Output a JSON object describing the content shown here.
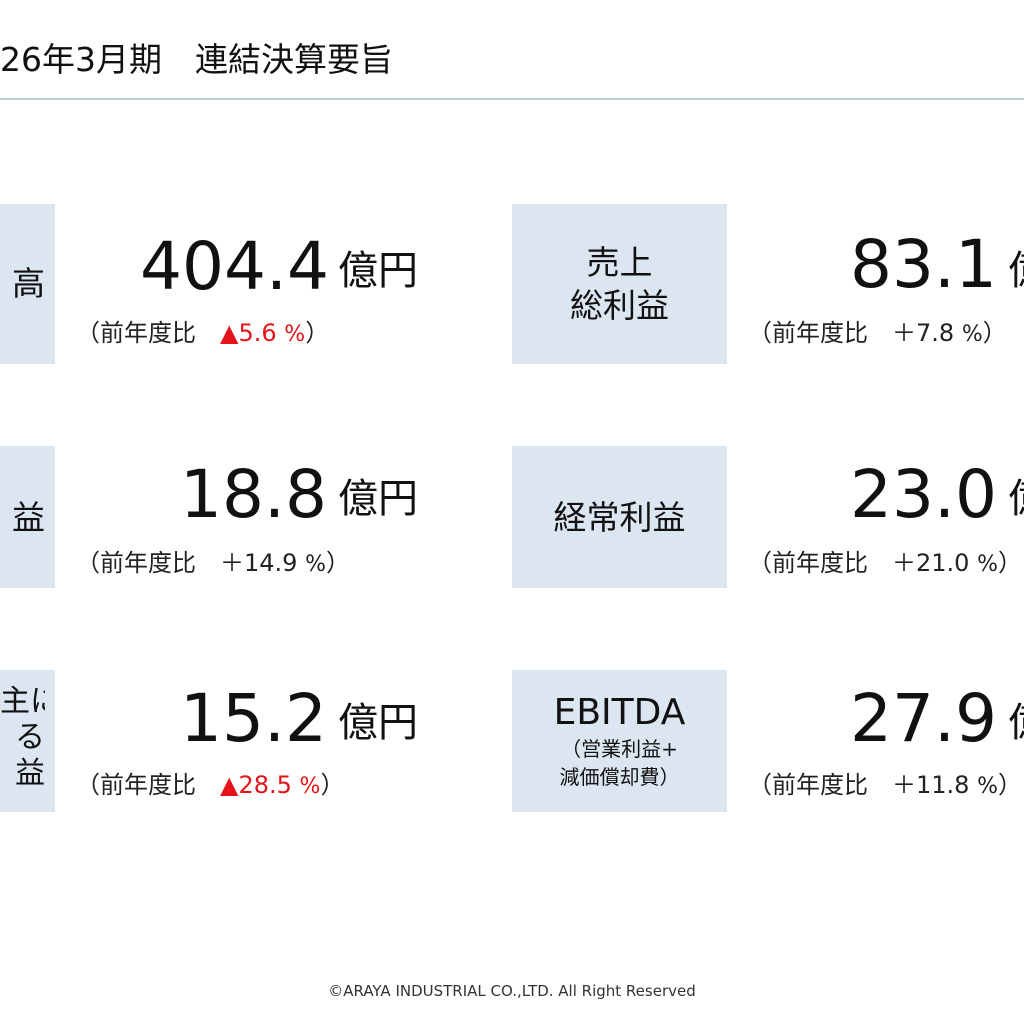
{
  "page": {
    "title": "26年3月期　連結決算要旨",
    "footer": "©ARAYA INDUSTRIAL CO.,LTD. All Right Reserved"
  },
  "colors": {
    "label_bg": "#dce6f1",
    "negative": "#e3141a",
    "rule": "#bcd3df"
  },
  "left": [
    {
      "label_fragments": [
        "高"
      ],
      "value": "404.4",
      "unit": "億円",
      "cmp_prefix": "（前年度比　",
      "cmp_sign": "▲",
      "cmp_value": "5.6",
      "cmp_pct": "%",
      "cmp_suffix": "）",
      "negative": true
    },
    {
      "label_fragments": [
        "益"
      ],
      "value": "18.8",
      "unit": "億円",
      "cmp_prefix": "（前年度比　",
      "cmp_sign": "＋",
      "cmp_value": "14.9",
      "cmp_pct": "%",
      "cmp_suffix": "）",
      "negative": false
    },
    {
      "label_fragments": [
        "主に",
        "る",
        "益"
      ],
      "value": "15.2",
      "unit": "億円",
      "cmp_prefix": "（前年度比　",
      "cmp_sign": "▲",
      "cmp_value": "28.5",
      "cmp_pct": "%",
      "cmp_suffix": "）",
      "negative": true
    }
  ],
  "right": [
    {
      "label_lines": [
        "売上",
        "総利益"
      ],
      "value": "83.1",
      "unit": "億円",
      "cmp_prefix": "（前年度比　",
      "cmp_sign": "＋",
      "cmp_value": "7.8",
      "cmp_pct": "%",
      "cmp_suffix": "）",
      "negative": false
    },
    {
      "label_lines": [
        "経常利益"
      ],
      "value": "23.0",
      "unit": "億円",
      "cmp_prefix": "（前年度比　",
      "cmp_sign": "＋",
      "cmp_value": "21.0",
      "cmp_pct": "%",
      "cmp_suffix": "）",
      "negative": false
    },
    {
      "label_main": "EBITDA",
      "label_sub": [
        "（営業利益+",
        "減価償却費）"
      ],
      "value": "27.9",
      "unit": "億円",
      "cmp_prefix": "（前年度比　",
      "cmp_sign": "＋",
      "cmp_value": "11.8",
      "cmp_pct": "%",
      "cmp_suffix": "）",
      "negative": false
    }
  ]
}
